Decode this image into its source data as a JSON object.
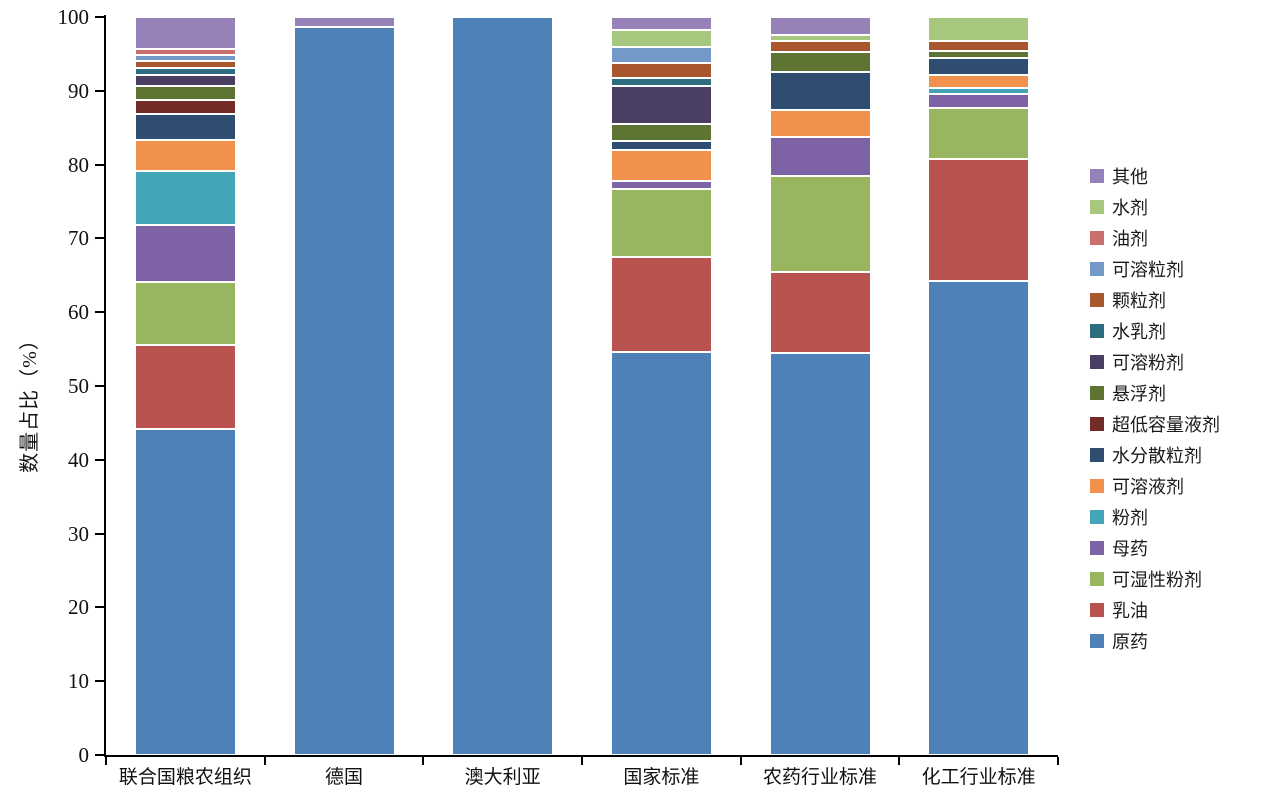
{
  "chart_data": {
    "type": "bar",
    "stacked": true,
    "orientation": "vertical",
    "title": "",
    "xlabel": "",
    "ylabel": "数量占比（%）",
    "ylim": [
      0,
      100
    ],
    "ytick_step": 10,
    "grid": false,
    "legend_position": "right",
    "legend_order": "reverse of series order (top item = 其他, bottom item = 原药)",
    "categories": [
      "联合国粮农组织",
      "德国",
      "澳大利亚",
      "国家标准",
      "农药行业标准",
      "化工行业标准"
    ],
    "series": [
      {
        "name": "原药",
        "color": "#4f81b9",
        "values": [
          44.2,
          98.6,
          100,
          54.6,
          54.5,
          64.2
        ]
      },
      {
        "name": "乳油",
        "color": "#ba5350",
        "values": [
          11.3,
          0,
          0,
          12.9,
          11.0,
          16.6
        ]
      },
      {
        "name": "可湿性粉剂",
        "color": "#98b560",
        "values": [
          8.6,
          0,
          0,
          9.2,
          13.0,
          6.9
        ]
      },
      {
        "name": "母药",
        "color": "#7d63a5",
        "values": [
          7.7,
          0,
          0,
          1.1,
          5.2,
          1.8
        ]
      },
      {
        "name": "粉剂",
        "color": "#44a5b8",
        "values": [
          7.3,
          0,
          0,
          0,
          0,
          0.9
        ]
      },
      {
        "name": "可溶液剂",
        "color": "#f0914e",
        "values": [
          4.2,
          0,
          0,
          4.2,
          3.7,
          1.7
        ]
      },
      {
        "name": "水分散粒剂",
        "color": "#2f4d71",
        "values": [
          3.5,
          0,
          0,
          1.2,
          5.2,
          2.4
        ]
      },
      {
        "name": "超低容量液剂",
        "color": "#732c28",
        "values": [
          2.0,
          0,
          0,
          0,
          0,
          0
        ]
      },
      {
        "name": "悬浮剂",
        "color": "#5e7433",
        "values": [
          1.9,
          0,
          0,
          2.3,
          2.7,
          0.9
        ]
      },
      {
        "name": "可溶粉剂",
        "color": "#4a3f63",
        "values": [
          1.4,
          0,
          0,
          5.2,
          0,
          0
        ]
      },
      {
        "name": "水乳剂",
        "color": "#2e6d80",
        "values": [
          1.0,
          0,
          0,
          1.1,
          0,
          0
        ]
      },
      {
        "name": "颗粒剂",
        "color": "#a8562e",
        "values": [
          0.9,
          0,
          0,
          1.9,
          1.4,
          1.3
        ]
      },
      {
        "name": "可溶粒剂",
        "color": "#7399c9",
        "values": [
          0.9,
          0,
          0,
          2.3,
          0,
          0
        ]
      },
      {
        "name": "油剂",
        "color": "#c9706e",
        "values": [
          0.8,
          0,
          0,
          0,
          0,
          0
        ]
      },
      {
        "name": "水剂",
        "color": "#a7c77f",
        "values": [
          0,
          0,
          0,
          2.3,
          0.8,
          3.3
        ]
      },
      {
        "name": "其他",
        "color": "#9682b8",
        "values": [
          4.3,
          1.4,
          0,
          1.7,
          2.5,
          0
        ]
      }
    ],
    "colors": {
      "axis": "#000000",
      "segment_border": "#ffffff",
      "background": "#ffffff"
    }
  }
}
